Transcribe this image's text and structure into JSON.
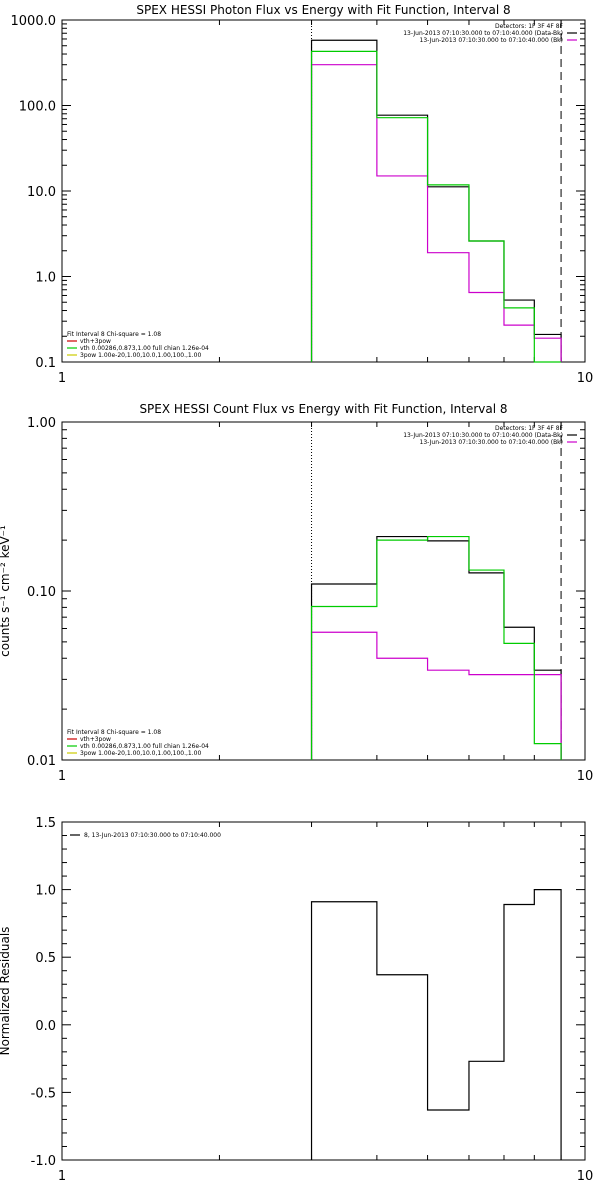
{
  "chart_data": [
    {
      "type": "line",
      "subtype": "step",
      "title": "SPEX HESSI Photon Flux vs Energy with Fit Function, Interval 8",
      "xlabel": "",
      "ylabel": "",
      "x_scale": "log",
      "y_scale": "log",
      "xlim": [
        1,
        10
      ],
      "ylim": [
        0.1,
        1000
      ],
      "x_ticks": [
        "1",
        "10"
      ],
      "y_ticks": [
        "0.1",
        "1.0",
        "10.0",
        "100.0",
        "1000.0"
      ],
      "x_edges": [
        3.0,
        4.0,
        5.0,
        6.0,
        7.0,
        8.0,
        9.0
      ],
      "series": [
        {
          "name": "Data",
          "color": "#000000",
          "values": [
            580,
            77,
            11.2,
            2.6,
            0.53,
            0.21
          ]
        },
        {
          "name": "vth+3pow",
          "color": "#cc00cc",
          "values": [
            300,
            15,
            1.9,
            0.65,
            0.27,
            0.19
          ]
        },
        {
          "name": "vth 0.00286,0.873,1.00 full chian 1.26e-04",
          "color": "#00cc00",
          "values": [
            430,
            72,
            11.8,
            2.6,
            0.43,
            0.1
          ]
        },
        {
          "name": "3pow 1.00e-20,1.00,10.0,1.00,100.,1.00",
          "color": "#cccc00",
          "values": []
        }
      ],
      "vlines": [
        {
          "x": 3.0,
          "style": "dotted"
        },
        {
          "x": 9.0,
          "style": "dashed"
        }
      ],
      "legend_top_right": [
        {
          "text": "Detectors: 1F 3F 4F 8F",
          "color": ""
        },
        {
          "text": "13-Jun-2013 07:10:30.000 to 07:10:40.000 (Data-Bk)",
          "color": "#000000"
        },
        {
          "text": "13-Jun-2013 07:10:30.000 to 07:10:40.000 (Bk)",
          "color": "#cc00cc"
        }
      ],
      "legend_bottom_left": [
        {
          "text": "Fit Interval 8   Chi-square = 1.08",
          "color": ""
        },
        {
          "text": "vth+3pow",
          "color": "#cc0000"
        },
        {
          "text": "vth 0.00286,0.873,1.00  full chian 1.26e-04",
          "color": "#00cc00"
        },
        {
          "text": "3pow 1.00e-20,1.00,10.0,1.00,100.,1.00",
          "color": "#cccc00"
        }
      ]
    },
    {
      "type": "line",
      "subtype": "step",
      "title": "SPEX HESSI Count Flux vs Energy with Fit Function, Interval 8",
      "xlabel": "",
      "ylabel": "counts s⁻¹ cm⁻² keV⁻¹",
      "x_scale": "log",
      "y_scale": "log",
      "xlim": [
        1,
        10
      ],
      "ylim": [
        0.01,
        1
      ],
      "x_ticks": [
        "1",
        "10"
      ],
      "y_ticks": [
        "0.01",
        "0.10",
        "1.00"
      ],
      "x_edges": [
        3.0,
        4.0,
        5.0,
        6.0,
        7.0,
        8.0,
        9.0
      ],
      "series": [
        {
          "name": "Data",
          "color": "#000000",
          "values": [
            0.11,
            0.21,
            0.198,
            0.128,
            0.061,
            0.034
          ]
        },
        {
          "name": "vth+3pow",
          "color": "#cc00cc",
          "values": [
            0.057,
            0.04,
            0.034,
            0.032,
            0.032,
            0.032
          ]
        },
        {
          "name": "vth 0.00286,0.873,1.00 full chian 1.26e-04",
          "color": "#00cc00",
          "values": [
            0.081,
            0.2,
            0.21,
            0.133,
            0.049,
            0.0125
          ]
        },
        {
          "name": "3pow 1.00e-20,1.00,10.0,1.00,100.,1.00",
          "color": "#cccc00",
          "values": []
        }
      ],
      "vlines": [
        {
          "x": 3.0,
          "style": "dotted"
        },
        {
          "x": 9.0,
          "style": "dashed"
        }
      ],
      "legend_top_right": [
        {
          "text": "Detectors: 1F 3F 4F 8F",
          "color": ""
        },
        {
          "text": "13-Jun-2013 07:10:30.000 to 07:10:40.000 (Data-Bk)",
          "color": "#000000"
        },
        {
          "text": "13-Jun-2013 07:10:30.000 to 07:10:40.000 (Bk)",
          "color": "#cc00cc"
        }
      ],
      "legend_bottom_left": [
        {
          "text": "Fit Interval 8   Chi-square = 1.08",
          "color": ""
        },
        {
          "text": "vth+3pow",
          "color": "#cc0000"
        },
        {
          "text": "vth 0.00286,0.873,1.00  full chian 1.26e-04",
          "color": "#00cc00"
        },
        {
          "text": "3pow 1.00e-20,1.00,10.0,1.00,100.,1.00",
          "color": "#cccc00"
        }
      ]
    },
    {
      "type": "line",
      "subtype": "step",
      "title": "",
      "xlabel": "",
      "ylabel": "Normalized Residuals",
      "x_scale": "log",
      "y_scale": "linear",
      "xlim": [
        1,
        10
      ],
      "ylim": [
        -1.0,
        1.5
      ],
      "x_ticks": [
        "1",
        "10"
      ],
      "y_ticks": [
        "-1.0",
        "-0.5",
        "0.0",
        "0.5",
        "1.0",
        "1.5"
      ],
      "x_edges": [
        3.0,
        4.0,
        5.0,
        6.0,
        7.0,
        8.0,
        9.0
      ],
      "series": [
        {
          "name": "8, 13-Jun-2013 07:10:30.000 to 07:10:40.000",
          "color": "#000000",
          "values": [
            0.91,
            0.37,
            -0.63,
            -0.27,
            0.89,
            1.0
          ]
        }
      ],
      "legend_top_left": [
        {
          "text": "8, 13-Jun-2013 07:10:30.000 to 07:10:40.000",
          "color": "#000000"
        }
      ]
    }
  ]
}
